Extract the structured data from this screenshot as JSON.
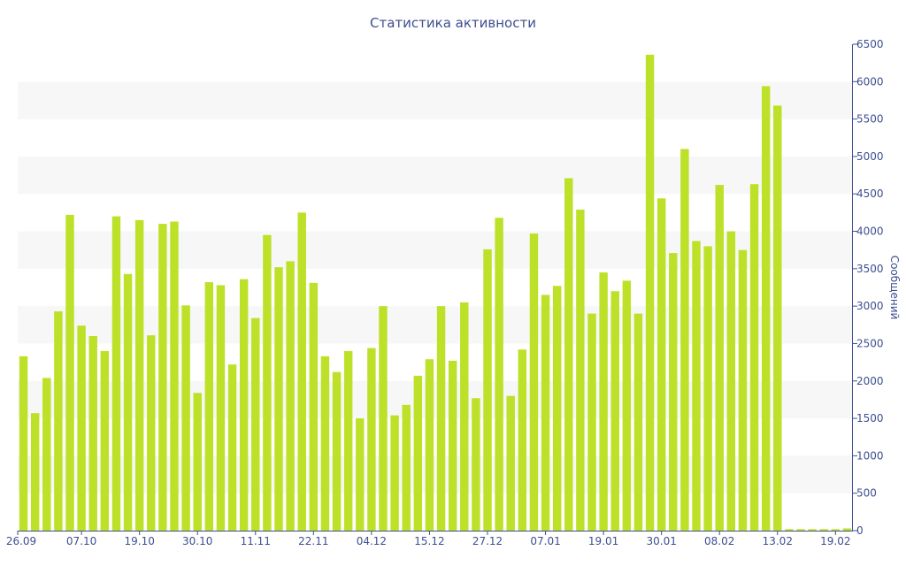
{
  "chart_data": {
    "type": "bar",
    "title": "Статистика активности",
    "ylabel": "Сообщений",
    "xlabel": "",
    "ylim": [
      0,
      6500
    ],
    "yticks": [
      0,
      500,
      1000,
      1500,
      2000,
      2500,
      3000,
      3500,
      4000,
      4500,
      5000,
      5500,
      6000,
      6500
    ],
    "grid": "alternating horizontal bands",
    "bar_color": "#bde128",
    "band_color": "#f7f7f7",
    "text_color": "#3d4f8f",
    "x_ticks": [
      {
        "label": "26.09",
        "index": 0
      },
      {
        "label": "07.10",
        "index": 5.5
      },
      {
        "label": "19.10",
        "index": 10.5
      },
      {
        "label": "30.10",
        "index": 15.5
      },
      {
        "label": "11.11",
        "index": 20.5
      },
      {
        "label": "22.11",
        "index": 25.5
      },
      {
        "label": "04.12",
        "index": 30.5
      },
      {
        "label": "15.12",
        "index": 35.5
      },
      {
        "label": "27.12",
        "index": 40.5
      },
      {
        "label": "07.01",
        "index": 45.5
      },
      {
        "label": "19.01",
        "index": 50.5
      },
      {
        "label": "30.01",
        "index": 55.5
      },
      {
        "label": "08.02",
        "index": 60.5
      },
      {
        "label": "13.02",
        "index": 65.5
      },
      {
        "label": "19.02",
        "index": 70.5
      }
    ],
    "values": [
      2330,
      1570,
      2040,
      2930,
      4220,
      2740,
      2600,
      2400,
      4200,
      3430,
      4150,
      2610,
      4100,
      4130,
      3010,
      1840,
      3320,
      3280,
      2220,
      3360,
      2840,
      3950,
      3520,
      3600,
      4250,
      3310,
      2330,
      2120,
      2400,
      1500,
      2440,
      3000,
      1540,
      1680,
      2070,
      2290,
      3000,
      2270,
      3050,
      1770,
      3760,
      4180,
      1800,
      2420,
      3970,
      3150,
      3270,
      4710,
      4290,
      2900,
      3450,
      3200,
      3340,
      2900,
      6360,
      4440,
      3710,
      5100,
      3870,
      3800,
      4620,
      4000,
      3750,
      4630,
      5940,
      5680,
      20,
      20,
      20,
      20,
      20,
      30
    ]
  }
}
